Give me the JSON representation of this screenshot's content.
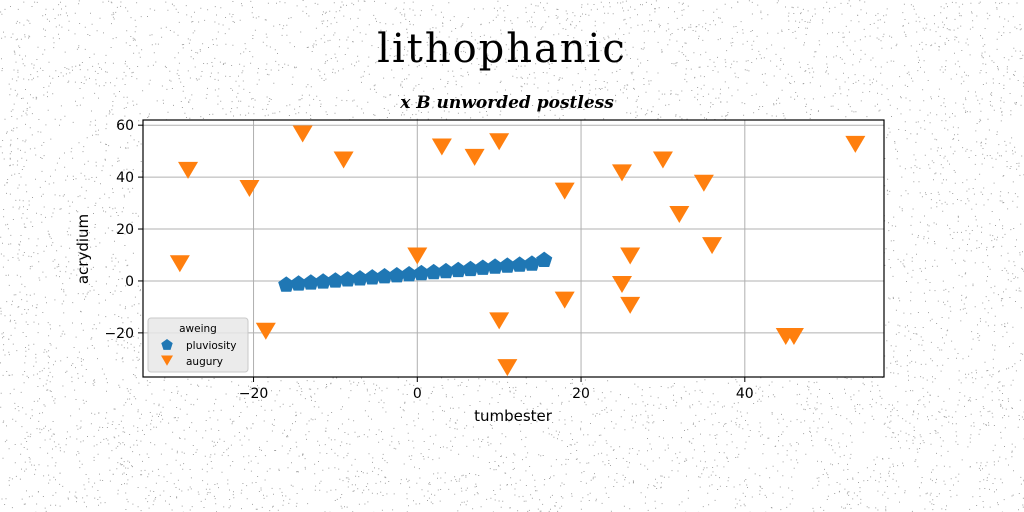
{
  "chart_data": {
    "type": "scatter",
    "suptitle": "lithophanic",
    "title": "x B unworded postless",
    "xlabel": "tumbester",
    "ylabel": "acrydium",
    "xlim": [
      -33.5,
      57
    ],
    "ylim": [
      -37,
      62
    ],
    "xticks": [
      -20,
      0,
      20,
      40
    ],
    "yticks": [
      -20,
      0,
      20,
      40,
      60
    ],
    "xtick_labels": [
      "−20",
      "0",
      "20",
      "40"
    ],
    "ytick_labels": [
      "−20",
      "0",
      "20",
      "40",
      "60"
    ],
    "grid": true,
    "legend": {
      "title": "aweing",
      "placement": "lower-left"
    },
    "series": [
      {
        "name": "pluviosity",
        "marker": "pentagon",
        "color": "#1f77b4",
        "x": [
          -16,
          -14.5,
          -13,
          -11.5,
          -10,
          -8.5,
          -7,
          -5.5,
          -4,
          -2.5,
          -1,
          0.5,
          2,
          3.5,
          5,
          6.5,
          8,
          9.5,
          11,
          12.5,
          14,
          15.5
        ],
        "y": [
          -1.5,
          -1.1,
          -0.7,
          -0.3,
          0.1,
          0.5,
          0.9,
          1.3,
          1.7,
          2.1,
          2.5,
          2.9,
          3.3,
          3.7,
          4.1,
          4.5,
          5.0,
          5.4,
          5.8,
          6.2,
          6.6,
          8.0
        ]
      },
      {
        "name": "augury",
        "marker": "triangle-down",
        "color": "#ff7f0e",
        "x": [
          -14,
          -9,
          -28,
          -29,
          -20.5,
          -18.5,
          3,
          7,
          10,
          0,
          10,
          11,
          18,
          18,
          25,
          26,
          25,
          26,
          30,
          32,
          35,
          36,
          45,
          46,
          53.5
        ],
        "y": [
          57,
          47,
          43,
          7,
          36,
          -19,
          52,
          48,
          54,
          10,
          -15,
          -33,
          35,
          -7,
          42,
          10,
          -1,
          -9,
          47,
          26,
          38,
          14,
          -21,
          -21,
          53
        ]
      }
    ]
  }
}
